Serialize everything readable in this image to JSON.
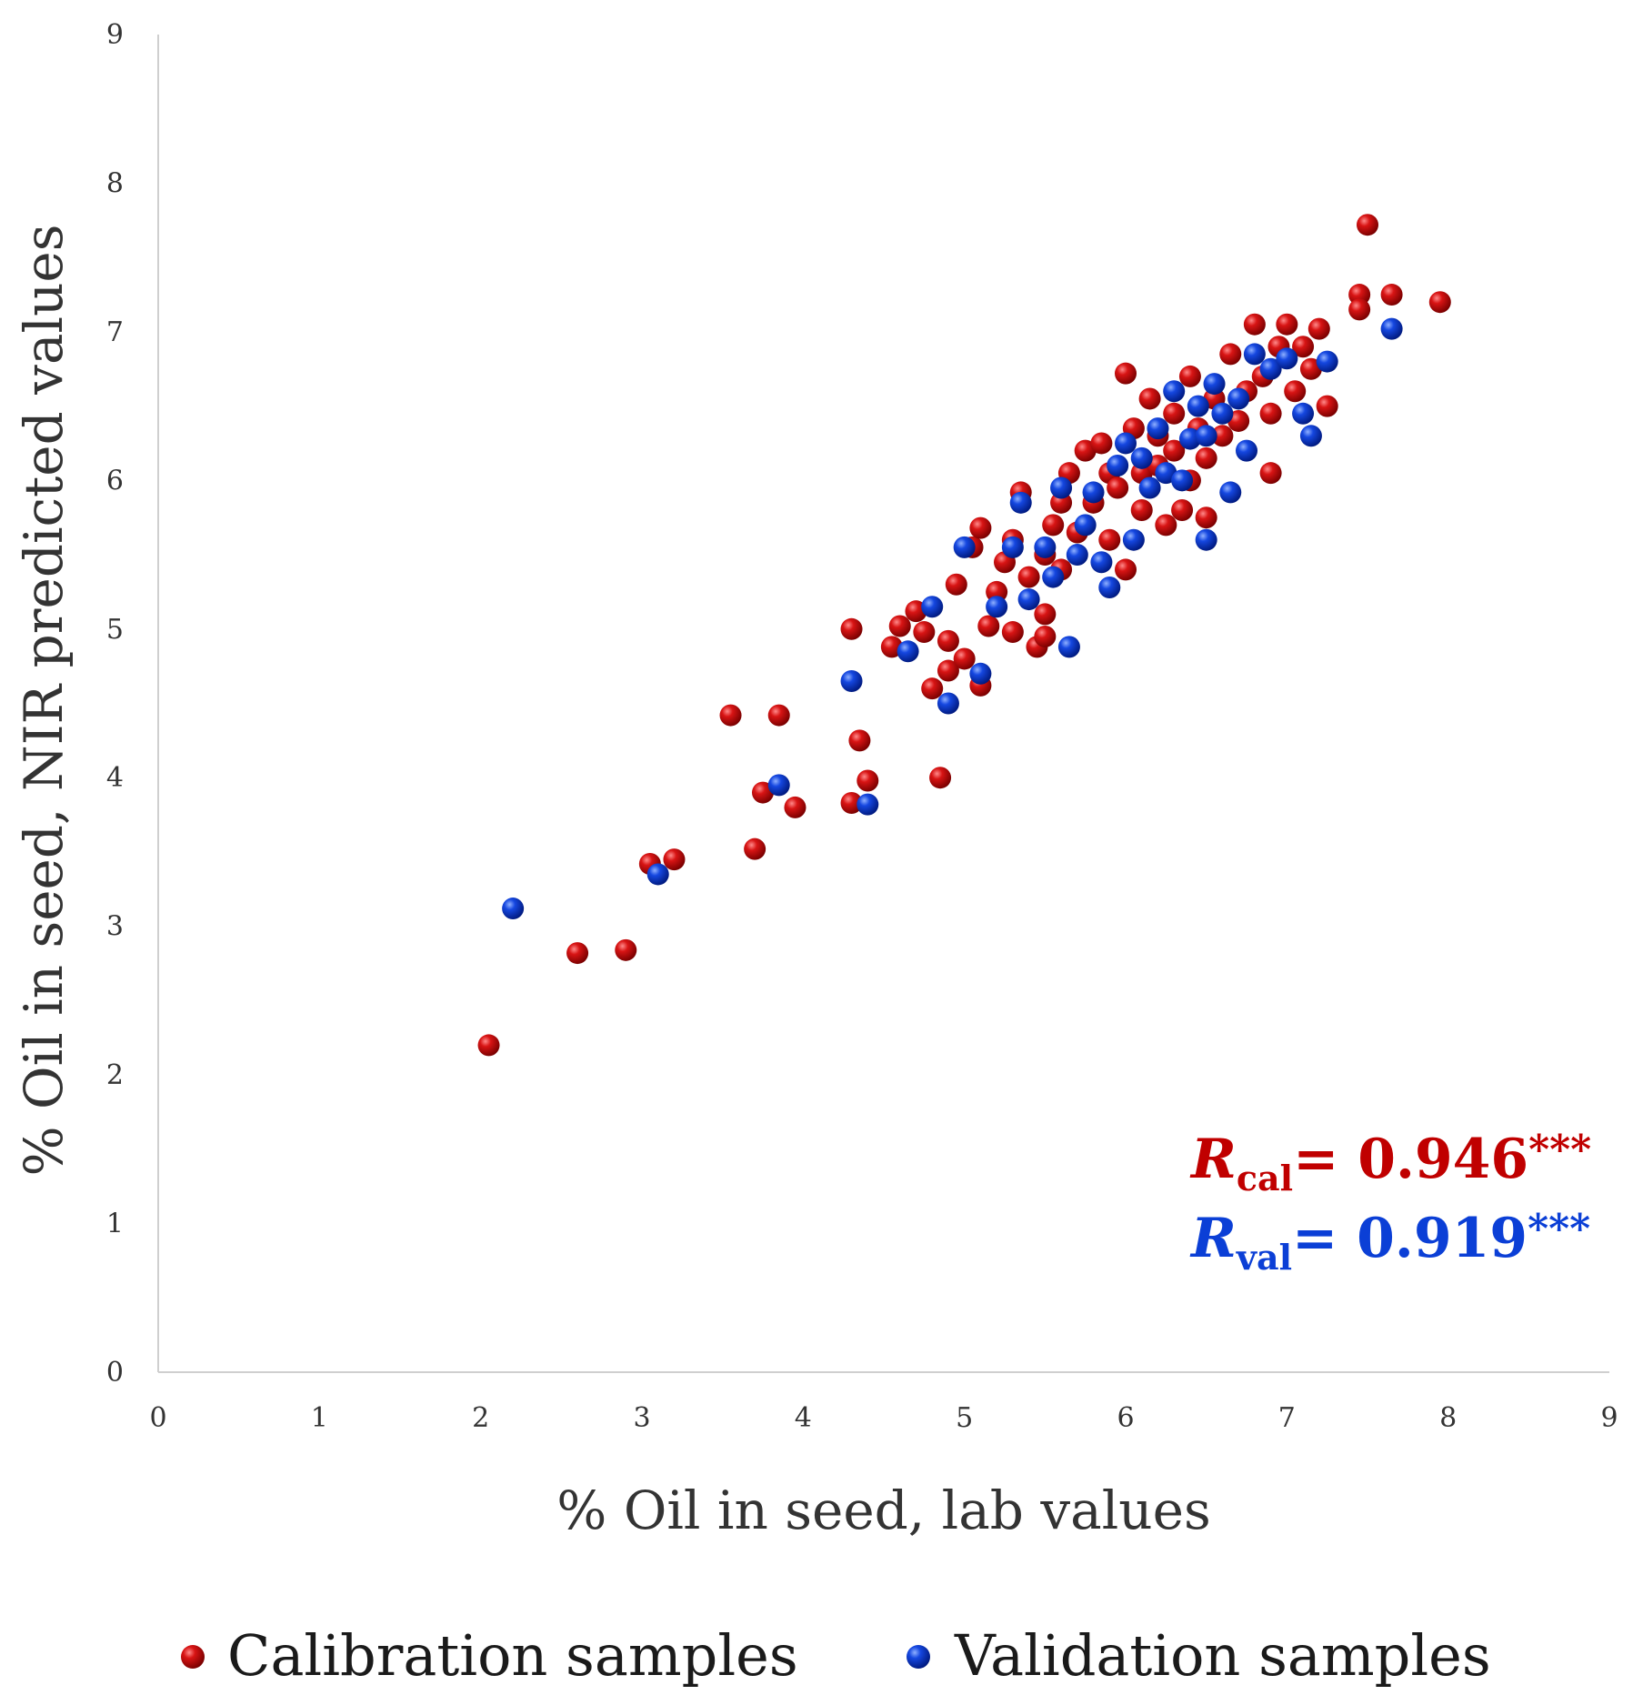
{
  "chart_data": {
    "type": "scatter",
    "xlabel": "% Oil in seed, lab values",
    "ylabel": "% Oil in seed, NIR predicted values",
    "xlim": [
      0,
      9
    ],
    "ylim": [
      0,
      9
    ],
    "x_ticks": [
      "0",
      "1",
      "2",
      "3",
      "4",
      "5",
      "6",
      "7",
      "8",
      "9"
    ],
    "y_ticks": [
      "0",
      "1",
      "2",
      "3",
      "4",
      "5",
      "6",
      "7",
      "8",
      "9"
    ],
    "grid": false,
    "legend_position": "bottom",
    "annotations": [
      {
        "symbol": "R",
        "subscript": "cal",
        "text": "= 0.946",
        "stars": "***",
        "color": "#c00000"
      },
      {
        "symbol": "R",
        "subscript": "val",
        "text": "= 0.919",
        "stars": "***",
        "color": "#0b3fd6"
      }
    ],
    "series": [
      {
        "name": "Calibration samples",
        "color": "#c00000",
        "points": [
          [
            2.05,
            2.2
          ],
          [
            2.6,
            2.82
          ],
          [
            2.9,
            2.84
          ],
          [
            3.05,
            3.42
          ],
          [
            3.2,
            3.45
          ],
          [
            3.55,
            4.42
          ],
          [
            3.75,
            3.9
          ],
          [
            3.7,
            3.52
          ],
          [
            3.85,
            4.42
          ],
          [
            3.95,
            3.8
          ],
          [
            4.3,
            5.0
          ],
          [
            4.3,
            3.83
          ],
          [
            4.35,
            4.25
          ],
          [
            4.4,
            3.98
          ],
          [
            4.55,
            4.88
          ],
          [
            4.6,
            5.02
          ],
          [
            4.7,
            5.12
          ],
          [
            4.75,
            4.98
          ],
          [
            4.8,
            4.6
          ],
          [
            4.85,
            4.0
          ],
          [
            4.9,
            4.92
          ],
          [
            4.9,
            4.72
          ],
          [
            4.95,
            5.3
          ],
          [
            5.0,
            4.8
          ],
          [
            5.05,
            5.55
          ],
          [
            5.1,
            5.68
          ],
          [
            5.1,
            4.62
          ],
          [
            5.15,
            5.02
          ],
          [
            5.2,
            5.25
          ],
          [
            5.25,
            5.45
          ],
          [
            5.3,
            5.6
          ],
          [
            5.3,
            4.98
          ],
          [
            5.35,
            5.92
          ],
          [
            5.4,
            5.35
          ],
          [
            5.45,
            4.88
          ],
          [
            5.5,
            5.5
          ],
          [
            5.5,
            5.1
          ],
          [
            5.5,
            4.95
          ],
          [
            5.55,
            5.7
          ],
          [
            5.6,
            5.85
          ],
          [
            5.6,
            5.4
          ],
          [
            5.65,
            6.05
          ],
          [
            5.7,
            5.65
          ],
          [
            5.75,
            6.2
          ],
          [
            5.8,
            5.85
          ],
          [
            5.85,
            6.25
          ],
          [
            5.9,
            5.6
          ],
          [
            5.9,
            6.05
          ],
          [
            5.95,
            5.95
          ],
          [
            6.0,
            6.72
          ],
          [
            6.0,
            5.4
          ],
          [
            6.05,
            6.35
          ],
          [
            6.1,
            6.05
          ],
          [
            6.1,
            5.8
          ],
          [
            6.15,
            6.55
          ],
          [
            6.2,
            6.3
          ],
          [
            6.2,
            6.1
          ],
          [
            6.25,
            5.7
          ],
          [
            6.3,
            6.45
          ],
          [
            6.3,
            6.2
          ],
          [
            6.35,
            5.8
          ],
          [
            6.4,
            6.7
          ],
          [
            6.4,
            6.0
          ],
          [
            6.45,
            6.35
          ],
          [
            6.5,
            6.15
          ],
          [
            6.5,
            5.75
          ],
          [
            6.55,
            6.55
          ],
          [
            6.6,
            6.3
          ],
          [
            6.65,
            6.85
          ],
          [
            6.7,
            6.4
          ],
          [
            6.75,
            6.6
          ],
          [
            6.8,
            7.05
          ],
          [
            6.85,
            6.7
          ],
          [
            6.9,
            6.45
          ],
          [
            6.9,
            6.05
          ],
          [
            6.95,
            6.9
          ],
          [
            7.0,
            7.05
          ],
          [
            7.05,
            6.6
          ],
          [
            7.1,
            6.9
          ],
          [
            7.15,
            6.75
          ],
          [
            7.2,
            7.02
          ],
          [
            7.25,
            6.5
          ],
          [
            7.45,
            7.25
          ],
          [
            7.45,
            7.15
          ],
          [
            7.5,
            7.72
          ],
          [
            7.65,
            7.25
          ],
          [
            7.95,
            7.2
          ]
        ]
      },
      {
        "name": "Validation samples",
        "color": "#0b3fd6",
        "points": [
          [
            2.2,
            3.12
          ],
          [
            3.1,
            3.35
          ],
          [
            3.85,
            3.95
          ],
          [
            4.3,
            4.65
          ],
          [
            4.4,
            3.82
          ],
          [
            4.65,
            4.85
          ],
          [
            4.8,
            5.15
          ],
          [
            4.9,
            4.5
          ],
          [
            5.0,
            5.55
          ],
          [
            5.1,
            4.7
          ],
          [
            5.2,
            5.15
          ],
          [
            5.3,
            5.55
          ],
          [
            5.35,
            5.85
          ],
          [
            5.4,
            5.2
          ],
          [
            5.5,
            5.55
          ],
          [
            5.55,
            5.35
          ],
          [
            5.6,
            5.95
          ],
          [
            5.65,
            4.88
          ],
          [
            5.7,
            5.5
          ],
          [
            5.75,
            5.7
          ],
          [
            5.8,
            5.92
          ],
          [
            5.85,
            5.45
          ],
          [
            5.9,
            5.28
          ],
          [
            5.95,
            6.1
          ],
          [
            6.0,
            6.25
          ],
          [
            6.05,
            5.6
          ],
          [
            6.1,
            6.15
          ],
          [
            6.15,
            5.95
          ],
          [
            6.2,
            6.35
          ],
          [
            6.25,
            6.05
          ],
          [
            6.3,
            6.6
          ],
          [
            6.35,
            6.0
          ],
          [
            6.4,
            6.28
          ],
          [
            6.45,
            6.5
          ],
          [
            6.5,
            6.3
          ],
          [
            6.5,
            5.6
          ],
          [
            6.55,
            6.65
          ],
          [
            6.6,
            6.45
          ],
          [
            6.65,
            5.92
          ],
          [
            6.7,
            6.55
          ],
          [
            6.75,
            6.2
          ],
          [
            6.8,
            6.85
          ],
          [
            6.9,
            6.75
          ],
          [
            7.0,
            6.82
          ],
          [
            7.1,
            6.45
          ],
          [
            7.15,
            6.3
          ],
          [
            7.25,
            6.8
          ],
          [
            7.65,
            7.02
          ]
        ]
      }
    ]
  }
}
